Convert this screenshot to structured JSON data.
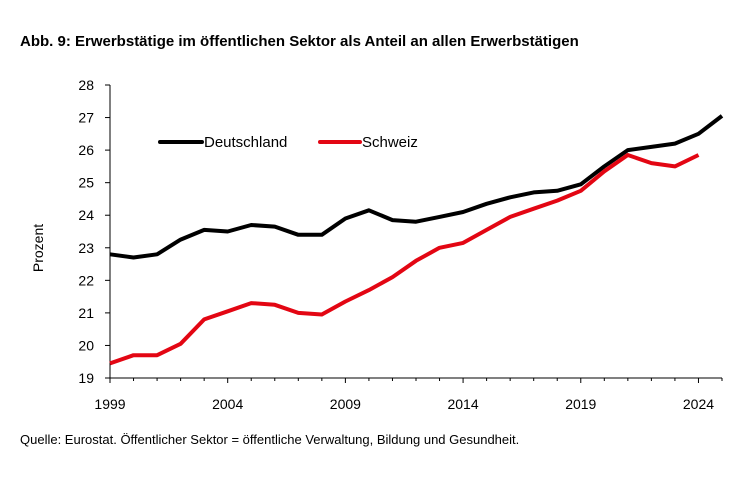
{
  "title": "Abb. 9: Erwerbstätige im öffentlichen Sektor als Anteil an allen Erwerbstätigen",
  "source": "Quelle: Eurostat. Öffentlicher Sektor = öffentliche Verwaltung, Bildung und Gesundheit.",
  "chart_data": {
    "type": "line",
    "title": "",
    "xlabel": "",
    "ylabel": "Prozent",
    "xlim": [
      1999,
      2025
    ],
    "ylim": [
      19,
      28
    ],
    "yticks": [
      19,
      20,
      21,
      22,
      23,
      24,
      25,
      26,
      27,
      28
    ],
    "xticks": [
      1999,
      2004,
      2009,
      2014,
      2019,
      2024
    ],
    "grid": false,
    "legend_position": "top-left",
    "series": [
      {
        "name": "Deutschland",
        "color": "#000000",
        "x": [
          1999,
          2000,
          2001,
          2002,
          2003,
          2004,
          2005,
          2006,
          2007,
          2008,
          2009,
          2010,
          2011,
          2012,
          2013,
          2014,
          2015,
          2016,
          2017,
          2018,
          2019,
          2020,
          2021,
          2022,
          2023,
          2024,
          2025
        ],
        "y": [
          22.8,
          22.7,
          22.8,
          23.25,
          23.55,
          23.5,
          23.7,
          23.65,
          23.4,
          23.4,
          23.9,
          24.15,
          23.85,
          23.8,
          23.95,
          24.1,
          24.35,
          24.55,
          24.7,
          24.75,
          24.95,
          25.5,
          26.0,
          26.1,
          26.2,
          26.5,
          27.05
        ]
      },
      {
        "name": "Schweiz",
        "color": "#e30613",
        "x": [
          1999,
          2000,
          2001,
          2002,
          2003,
          2004,
          2005,
          2006,
          2007,
          2008,
          2009,
          2010,
          2011,
          2012,
          2013,
          2014,
          2015,
          2016,
          2017,
          2018,
          2019,
          2020,
          2021,
          2022,
          2023,
          2024
        ],
        "y": [
          19.45,
          19.7,
          19.7,
          20.05,
          20.8,
          21.05,
          21.3,
          21.25,
          21.0,
          20.95,
          21.35,
          21.7,
          22.1,
          22.6,
          23.0,
          23.15,
          23.55,
          23.95,
          24.2,
          24.45,
          24.75,
          25.35,
          25.85,
          25.6,
          25.5,
          25.85
        ]
      }
    ]
  }
}
